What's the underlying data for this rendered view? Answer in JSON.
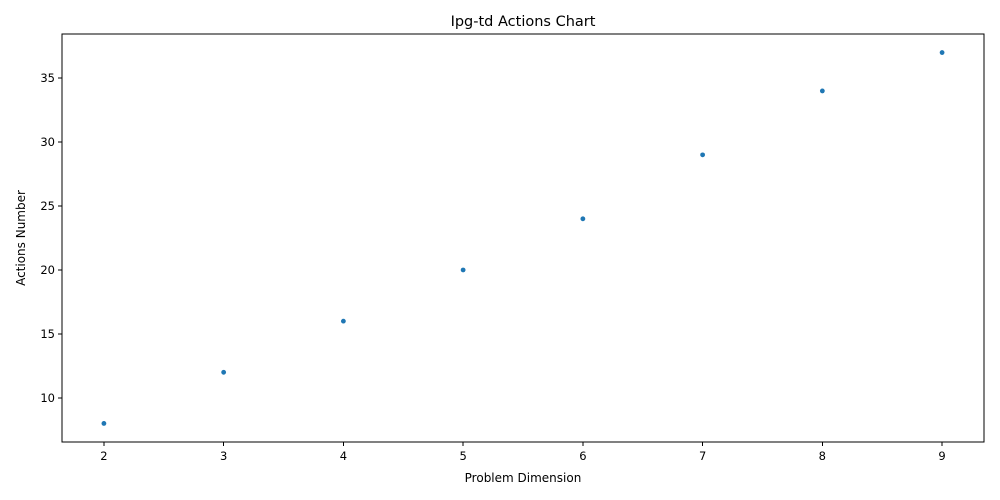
{
  "chart_data": {
    "type": "scatter",
    "title": "Ipg-td Actions Chart",
    "xlabel": "Problem Dimension",
    "ylabel": "Actions Number",
    "x": [
      2,
      3,
      4,
      5,
      6,
      7,
      8,
      9
    ],
    "series": [
      {
        "values": [
          8,
          12,
          16,
          20,
          24,
          29,
          34,
          37
        ],
        "color": "#1f77b4"
      }
    ],
    "xticks": [
      2,
      3,
      4,
      5,
      6,
      7,
      8,
      9
    ],
    "yticks": [
      10,
      15,
      20,
      25,
      30,
      35
    ],
    "xlim": [
      1.65,
      9.35
    ],
    "ylim": [
      6.55,
      38.45
    ],
    "grid": false,
    "legend": "none"
  }
}
